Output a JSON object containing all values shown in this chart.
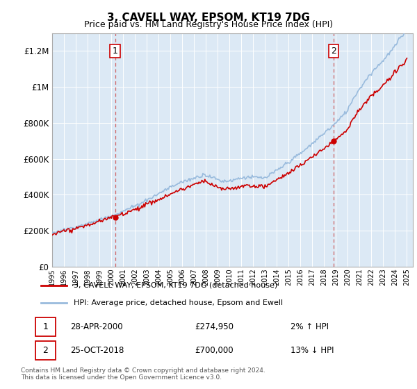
{
  "title": "3, CAVELL WAY, EPSOM, KT19 7DG",
  "subtitle": "Price paid vs. HM Land Registry's House Price Index (HPI)",
  "plot_bg_color": "#dce9f5",
  "ylim": [
    0,
    1300000
  ],
  "yticks": [
    0,
    200000,
    400000,
    600000,
    800000,
    1000000,
    1200000
  ],
  "ytick_labels": [
    "£0",
    "£200K",
    "£400K",
    "£600K",
    "£800K",
    "£1M",
    "£1.2M"
  ],
  "sale1_date": 2000.32,
  "sale1_price": 274950,
  "sale1_label": "1",
  "sale2_date": 2018.82,
  "sale2_price": 700000,
  "sale2_label": "2",
  "red_color": "#cc0000",
  "blue_color": "#99bbdd",
  "legend_line1": "3, CAVELL WAY, EPSOM, KT19 7DG (detached house)",
  "legend_line2": "HPI: Average price, detached house, Epsom and Ewell",
  "ann1_box": "1",
  "ann1_date": "28-APR-2000",
  "ann1_price": "£274,950",
  "ann1_hpi": "2% ↑ HPI",
  "ann2_box": "2",
  "ann2_date": "25-OCT-2018",
  "ann2_price": "£700,000",
  "ann2_hpi": "13% ↓ HPI",
  "footer_line1": "Contains HM Land Registry data © Crown copyright and database right 2024.",
  "footer_line2": "This data is licensed under the Open Government Licence v3.0.",
  "xmin": 1995.0,
  "xmax": 2025.5
}
